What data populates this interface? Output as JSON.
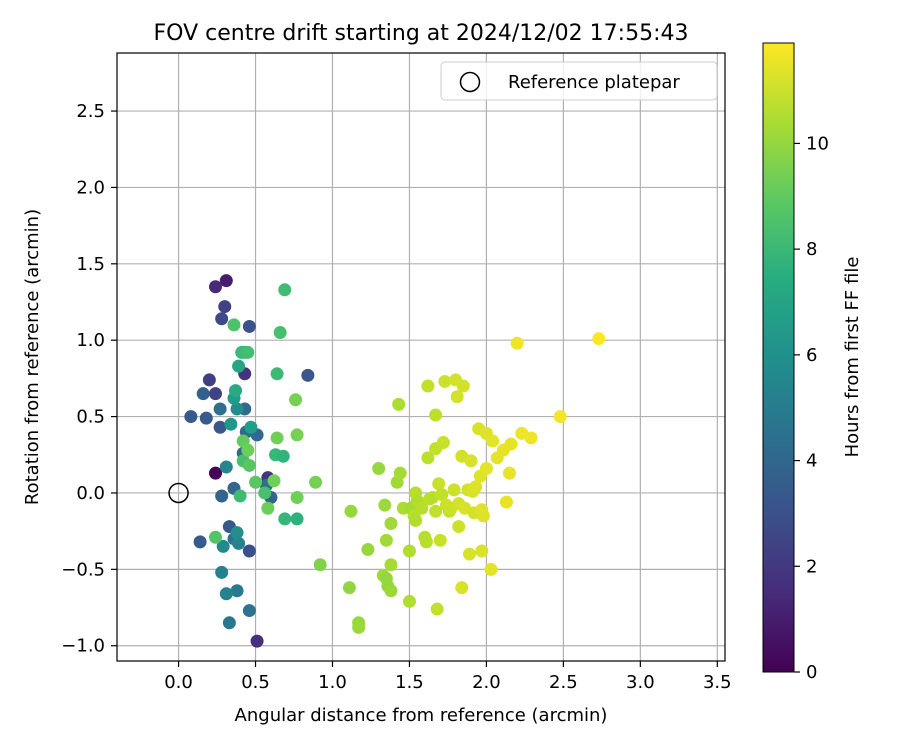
{
  "chart_data": {
    "type": "scatter",
    "title": "FOV centre drift starting at 2024/12/02 17:55:43",
    "xlabel": "Angular distance from reference (arcmin)",
    "ylabel": "Rotation from reference (arcmin)",
    "xlim": [
      -0.4,
      3.55
    ],
    "ylim": [
      -1.1,
      2.88
    ],
    "xticks": [
      0.0,
      0.5,
      1.0,
      1.5,
      2.0,
      2.5,
      3.0,
      3.5
    ],
    "xtick_labels": [
      "0.0",
      "0.5",
      "1.0",
      "1.5",
      "2.0",
      "2.5",
      "3.0",
      "3.5"
    ],
    "yticks": [
      -1.0,
      -0.5,
      0.0,
      0.5,
      1.0,
      1.5,
      2.0,
      2.5
    ],
    "ytick_labels": [
      "−1.0",
      "−0.5",
      "0.0",
      "0.5",
      "1.0",
      "1.5",
      "2.0",
      "2.5"
    ],
    "grid": true,
    "legend": {
      "position": "top-right",
      "entries": [
        "Reference platepar"
      ]
    },
    "reference_point": {
      "x": 0.0,
      "y": 0.0
    },
    "colorbar": {
      "label": "Hours from first FF file",
      "min": 0,
      "max": 11.9,
      "ticks": [
        0,
        2,
        4,
        6,
        8,
        10
      ],
      "tick_labels": [
        "0",
        "2",
        "4",
        "6",
        "8",
        "10"
      ],
      "colormap": "viridis"
    },
    "series": [
      {
        "points": [
          {
            "x": 0.24,
            "y": 0.13,
            "h": 0.1
          },
          {
            "x": 0.31,
            "y": 1.39,
            "h": 1.0
          },
          {
            "x": 0.24,
            "y": 1.35,
            "h": 1.4
          },
          {
            "x": 0.51,
            "y": -0.97,
            "h": 1.6
          },
          {
            "x": 0.3,
            "y": 1.22,
            "h": 2.3
          },
          {
            "x": 0.2,
            "y": 0.74,
            "h": 2.2
          },
          {
            "x": 0.24,
            "y": 0.65,
            "h": 2.4
          },
          {
            "x": 0.43,
            "y": 0.78,
            "h": 1.8
          },
          {
            "x": 0.28,
            "y": 1.14,
            "h": 2.6
          },
          {
            "x": 0.46,
            "y": 1.09,
            "h": 3.0
          },
          {
            "x": 0.84,
            "y": 0.77,
            "h": 3.2
          },
          {
            "x": 0.58,
            "y": 0.1,
            "h": 1.8
          },
          {
            "x": 0.08,
            "y": 0.5,
            "h": 3.3
          },
          {
            "x": 0.18,
            "y": 0.49,
            "h": 3.4
          },
          {
            "x": 0.16,
            "y": 0.65,
            "h": 3.6
          },
          {
            "x": 0.27,
            "y": 0.43,
            "h": 3.2
          },
          {
            "x": 0.28,
            "y": -0.02,
            "h": 3.8
          },
          {
            "x": 0.33,
            "y": -0.22,
            "h": 3.3
          },
          {
            "x": 0.46,
            "y": -0.38,
            "h": 2.9
          },
          {
            "x": 0.14,
            "y": -0.32,
            "h": 3.4
          },
          {
            "x": 0.27,
            "y": 0.55,
            "h": 4.3
          },
          {
            "x": 0.43,
            "y": 0.55,
            "h": 4.0
          },
          {
            "x": 0.36,
            "y": 0.03,
            "h": 3.9
          },
          {
            "x": 0.44,
            "y": 0.4,
            "h": 4.1
          },
          {
            "x": 0.51,
            "y": 0.38,
            "h": 4.0
          },
          {
            "x": 0.42,
            "y": 0.26,
            "h": 4.0
          },
          {
            "x": 0.57,
            "y": 0.05,
            "h": 4.3
          },
          {
            "x": 0.6,
            "y": -0.03,
            "h": 3.8
          },
          {
            "x": 0.36,
            "y": -0.3,
            "h": 4.6
          },
          {
            "x": 0.46,
            "y": -0.77,
            "h": 4.5
          },
          {
            "x": 0.33,
            "y": -0.85,
            "h": 4.8
          },
          {
            "x": 0.38,
            "y": -0.64,
            "h": 4.9
          },
          {
            "x": 0.31,
            "y": -0.66,
            "h": 5.3
          },
          {
            "x": 0.28,
            "y": -0.52,
            "h": 5.2
          },
          {
            "x": 0.39,
            "y": -0.33,
            "h": 5.3
          },
          {
            "x": 0.29,
            "y": -0.35,
            "h": 5.7
          },
          {
            "x": 0.38,
            "y": -0.26,
            "h": 5.9
          },
          {
            "x": 0.31,
            "y": 0.17,
            "h": 5.5
          },
          {
            "x": 0.38,
            "y": 0.55,
            "h": 5.8
          },
          {
            "x": 0.36,
            "y": 0.62,
            "h": 6.6
          },
          {
            "x": 0.34,
            "y": 0.45,
            "h": 6.3
          },
          {
            "x": 0.43,
            "y": 0.92,
            "h": 6.9
          },
          {
            "x": 0.47,
            "y": 0.43,
            "h": 6.6
          },
          {
            "x": 0.37,
            "y": 0.67,
            "h": 7.2
          },
          {
            "x": 0.39,
            "y": 0.83,
            "h": 7.0
          },
          {
            "x": 0.41,
            "y": 0.92,
            "h": 8.1
          },
          {
            "x": 0.45,
            "y": 0.92,
            "h": 8.3
          },
          {
            "x": 0.36,
            "y": 1.1,
            "h": 8.5
          },
          {
            "x": 0.69,
            "y": 1.33,
            "h": 8.2
          },
          {
            "x": 0.66,
            "y": 1.05,
            "h": 8.4
          },
          {
            "x": 0.64,
            "y": 0.78,
            "h": 8.1
          },
          {
            "x": 0.63,
            "y": 0.25,
            "h": 8.0
          },
          {
            "x": 0.68,
            "y": 0.24,
            "h": 7.7
          },
          {
            "x": 0.77,
            "y": -0.17,
            "h": 7.6
          },
          {
            "x": 0.69,
            "y": -0.17,
            "h": 7.9
          },
          {
            "x": 0.4,
            "y": -0.02,
            "h": 8.2
          },
          {
            "x": 0.56,
            "y": 0.0,
            "h": 8.4
          },
          {
            "x": 0.5,
            "y": 0.07,
            "h": 8.8
          },
          {
            "x": 0.24,
            "y": -0.29,
            "h": 8.6
          },
          {
            "x": 0.42,
            "y": 0.21,
            "h": 8.4
          },
          {
            "x": 0.46,
            "y": 0.18,
            "h": 8.8
          },
          {
            "x": 0.42,
            "y": 0.34,
            "h": 9.0
          },
          {
            "x": 0.45,
            "y": 0.28,
            "h": 9.2
          },
          {
            "x": 0.64,
            "y": 0.36,
            "h": 9.3
          },
          {
            "x": 0.77,
            "y": 0.38,
            "h": 9.4
          },
          {
            "x": 0.76,
            "y": 0.61,
            "h": 9.4
          },
          {
            "x": 0.77,
            "y": -0.03,
            "h": 9.3
          },
          {
            "x": 0.58,
            "y": -0.1,
            "h": 9.2
          },
          {
            "x": 0.62,
            "y": 0.08,
            "h": 9.3
          },
          {
            "x": 0.89,
            "y": 0.07,
            "h": 9.4
          },
          {
            "x": 0.92,
            "y": -0.47,
            "h": 9.6
          },
          {
            "x": 1.11,
            "y": -0.62,
            "h": 9.9
          },
          {
            "x": 1.12,
            "y": -0.12,
            "h": 10.0
          },
          {
            "x": 1.17,
            "y": -0.85,
            "h": 10.0
          },
          {
            "x": 1.17,
            "y": -0.88,
            "h": 10.1
          },
          {
            "x": 1.23,
            "y": -0.37,
            "h": 10.0
          },
          {
            "x": 1.3,
            "y": 0.16,
            "h": 10.0
          },
          {
            "x": 1.34,
            "y": -0.08,
            "h": 10.1
          },
          {
            "x": 1.33,
            "y": -0.54,
            "h": 10.2
          },
          {
            "x": 1.35,
            "y": -0.31,
            "h": 10.2
          },
          {
            "x": 1.36,
            "y": -0.61,
            "h": 10.0
          },
          {
            "x": 1.38,
            "y": -0.64,
            "h": 10.1
          },
          {
            "x": 1.38,
            "y": -0.2,
            "h": 10.2
          },
          {
            "x": 1.38,
            "y": -0.47,
            "h": 10.3
          },
          {
            "x": 1.35,
            "y": -0.56,
            "h": 10.0
          },
          {
            "x": 1.42,
            "y": 0.07,
            "h": 10.2
          },
          {
            "x": 1.44,
            "y": 0.13,
            "h": 10.3
          },
          {
            "x": 1.43,
            "y": 0.58,
            "h": 10.4
          },
          {
            "x": 1.46,
            "y": -0.1,
            "h": 10.4
          },
          {
            "x": 1.5,
            "y": -0.38,
            "h": 10.5
          },
          {
            "x": 1.5,
            "y": -0.71,
            "h": 10.5
          },
          {
            "x": 1.51,
            "y": -0.1,
            "h": 10.3
          },
          {
            "x": 1.53,
            "y": -0.15,
            "h": 10.6
          },
          {
            "x": 1.54,
            "y": -0.18,
            "h": 10.5
          },
          {
            "x": 1.54,
            "y": -0.0,
            "h": 10.6
          },
          {
            "x": 1.55,
            "y": -0.05,
            "h": 10.5
          },
          {
            "x": 1.58,
            "y": -0.1,
            "h": 10.6
          },
          {
            "x": 1.6,
            "y": -0.29,
            "h": 10.6
          },
          {
            "x": 1.61,
            "y": -0.32,
            "h": 10.6
          },
          {
            "x": 1.62,
            "y": 0.23,
            "h": 10.7
          },
          {
            "x": 1.62,
            "y": 0.7,
            "h": 10.8
          },
          {
            "x": 1.63,
            "y": -0.04,
            "h": 10.7
          },
          {
            "x": 1.65,
            "y": -0.03,
            "h": 10.6
          },
          {
            "x": 1.67,
            "y": 0.51,
            "h": 10.7
          },
          {
            "x": 1.67,
            "y": 0.29,
            "h": 10.8
          },
          {
            "x": 1.67,
            "y": -0.12,
            "h": 10.8
          },
          {
            "x": 1.68,
            "y": -0.76,
            "h": 10.8
          },
          {
            "x": 1.69,
            "y": 0.06,
            "h": 10.9
          },
          {
            "x": 1.7,
            "y": -0.31,
            "h": 10.9
          },
          {
            "x": 1.71,
            "y": -0.01,
            "h": 10.8
          },
          {
            "x": 1.72,
            "y": 0.33,
            "h": 10.9
          },
          {
            "x": 1.73,
            "y": 0.73,
            "h": 11.0
          },
          {
            "x": 1.74,
            "y": -0.08,
            "h": 11.0
          },
          {
            "x": 1.76,
            "y": -0.12,
            "h": 10.8
          },
          {
            "x": 1.77,
            "y": -0.1,
            "h": 11.0
          },
          {
            "x": 1.79,
            "y": 0.02,
            "h": 11.0
          },
          {
            "x": 1.8,
            "y": 0.74,
            "h": 11.1
          },
          {
            "x": 1.81,
            "y": 0.63,
            "h": 11.1
          },
          {
            "x": 1.82,
            "y": -0.22,
            "h": 11.0
          },
          {
            "x": 1.82,
            "y": -0.07,
            "h": 11.1
          },
          {
            "x": 1.84,
            "y": -0.62,
            "h": 11.2
          },
          {
            "x": 1.84,
            "y": 0.24,
            "h": 11.1
          },
          {
            "x": 1.85,
            "y": 0.7,
            "h": 11.1
          },
          {
            "x": 1.86,
            "y": -0.1,
            "h": 11.2
          },
          {
            "x": 1.88,
            "y": 0.02,
            "h": 11.1
          },
          {
            "x": 1.89,
            "y": -0.4,
            "h": 11.2
          },
          {
            "x": 1.9,
            "y": 0.21,
            "h": 11.2
          },
          {
            "x": 1.91,
            "y": 0.01,
            "h": 11.2
          },
          {
            "x": 1.92,
            "y": -0.13,
            "h": 11.1
          },
          {
            "x": 1.93,
            "y": 0.04,
            "h": 11.3
          },
          {
            "x": 1.95,
            "y": 0.42,
            "h": 11.2
          },
          {
            "x": 1.96,
            "y": 0.11,
            "h": 11.3
          },
          {
            "x": 1.97,
            "y": -0.11,
            "h": 11.3
          },
          {
            "x": 1.97,
            "y": -0.38,
            "h": 11.2
          },
          {
            "x": 1.98,
            "y": -0.15,
            "h": 11.3
          },
          {
            "x": 2.0,
            "y": 0.39,
            "h": 11.3
          },
          {
            "x": 2.0,
            "y": 0.16,
            "h": 11.4
          },
          {
            "x": 2.03,
            "y": -0.5,
            "h": 11.4
          },
          {
            "x": 2.04,
            "y": 0.34,
            "h": 11.4
          },
          {
            "x": 2.07,
            "y": 0.23,
            "h": 11.4
          },
          {
            "x": 2.11,
            "y": 0.28,
            "h": 11.5
          },
          {
            "x": 2.13,
            "y": -0.06,
            "h": 11.5
          },
          {
            "x": 2.15,
            "y": 0.13,
            "h": 11.5
          },
          {
            "x": 2.16,
            "y": 0.32,
            "h": 11.5
          },
          {
            "x": 2.2,
            "y": 0.98,
            "h": 11.6
          },
          {
            "x": 2.23,
            "y": 0.39,
            "h": 11.6
          },
          {
            "x": 2.29,
            "y": 0.36,
            "h": 11.6
          },
          {
            "x": 2.48,
            "y": 0.5,
            "h": 11.7
          },
          {
            "x": 2.73,
            "y": 1.01,
            "h": 11.9
          }
        ]
      }
    ]
  }
}
